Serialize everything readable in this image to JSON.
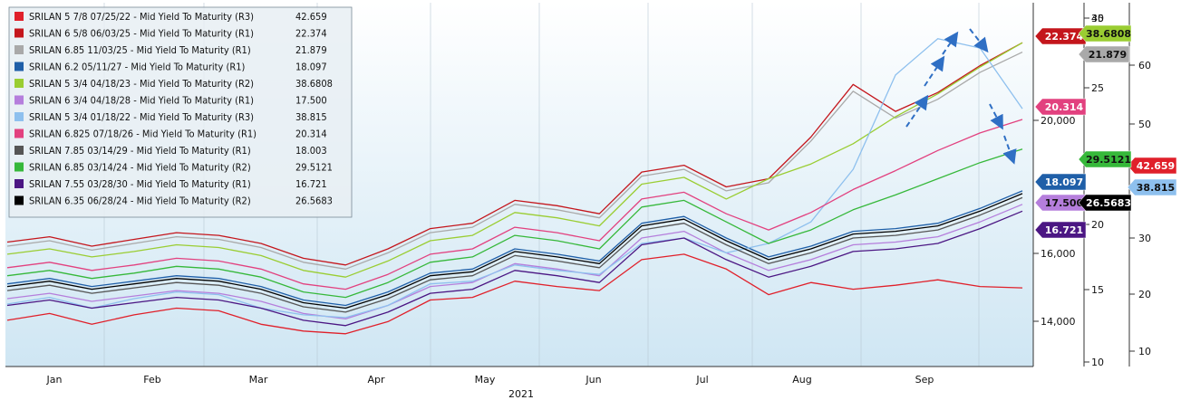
{
  "chart_data": {
    "type": "line",
    "xlabel": "2021",
    "months": [
      "Jan",
      "Feb",
      "Mar",
      "Apr",
      "May",
      "Jun",
      "Jul",
      "Aug",
      "Sep"
    ],
    "axes": {
      "a": {
        "ticks": [
          10,
          15,
          20,
          25,
          35,
          40
        ]
      },
      "b": {
        "ticks": [
          "14,000",
          "16,000",
          "20,000"
        ]
      },
      "c": {
        "ticks": [
          10,
          20,
          30,
          50,
          60
        ]
      }
    },
    "series": [
      {
        "name": "SRILAN 5 7/8 07/25/22 - Mid Yield To Maturity (R3)",
        "value": "42.659",
        "color": "#e0202a",
        "badge_text": "#ffffff",
        "values": [
          16.3,
          16.8,
          16.0,
          16.7,
          17.2,
          17.0,
          16.0,
          15.5,
          15.3,
          16.2,
          17.8,
          18.0,
          19.2,
          18.8,
          18.5,
          20.8,
          21.2,
          20.1,
          18.2,
          19.1,
          18.6,
          18.9,
          19.3,
          18.8,
          18.7
        ]
      },
      {
        "name": "SRILAN 6 5/8 06/03/25 - Mid Yield To Maturity (R1)",
        "value": "22.374",
        "color": "#c4161c",
        "badge_text": "#ffffff",
        "values": [
          22.1,
          22.5,
          21.8,
          22.3,
          22.8,
          22.6,
          22.0,
          20.9,
          20.4,
          21.6,
          23.1,
          23.5,
          25.2,
          24.8,
          24.2,
          27.3,
          27.8,
          26.2,
          26.8,
          29.9,
          33.8,
          31.8,
          33.2,
          35.2,
          36.9
        ]
      },
      {
        "name": "SRILAN 6.85 11/03/25 - Mid Yield To Maturity (R1)",
        "value": "21.879",
        "color": "#a9a9a9",
        "badge_text": "#111111",
        "values": [
          21.8,
          22.2,
          21.5,
          22.0,
          22.5,
          22.3,
          21.7,
          20.6,
          20.1,
          21.3,
          22.8,
          23.2,
          24.9,
          24.5,
          23.9,
          27.0,
          27.5,
          25.9,
          26.5,
          29.6,
          33.3,
          31.3,
          32.7,
          34.7,
          36.2
        ]
      },
      {
        "name": "SRILAN 6.2 05/11/27 - Mid Yield To Maturity (R1)",
        "value": "18.097",
        "color": "#1f5fa8",
        "badge_text": "#ffffff",
        "values": [
          19.0,
          19.4,
          18.8,
          19.2,
          19.6,
          19.4,
          18.8,
          17.8,
          17.4,
          18.4,
          19.8,
          20.1,
          21.6,
          21.2,
          20.7,
          23.5,
          24.0,
          22.4,
          21.0,
          21.8,
          22.9,
          23.1,
          23.5,
          24.6,
          25.9
        ]
      },
      {
        "name": "SRILAN 5 3/4 04/18/23 - Mid Yield To Maturity (R2)",
        "value": "38.6808",
        "color": "#9acd32",
        "badge_text": "#111111",
        "values": [
          21.2,
          21.6,
          21.0,
          21.4,
          21.9,
          21.7,
          21.1,
          20.0,
          19.5,
          20.7,
          22.2,
          22.6,
          24.3,
          23.9,
          23.3,
          26.4,
          26.9,
          25.3,
          26.8,
          27.9,
          29.4,
          31.4,
          33.1,
          35.1,
          36.9
        ]
      },
      {
        "name": "SRILAN 6 3/4 04/18/28 - Mid Yield To Maturity (R1)",
        "value": "17.500",
        "color": "#b57edc",
        "badge_text": "#111111",
        "values": [
          17.9,
          18.3,
          17.7,
          18.1,
          18.5,
          18.3,
          17.7,
          16.8,
          16.4,
          17.4,
          18.8,
          19.1,
          20.5,
          20.1,
          19.6,
          22.4,
          22.9,
          21.3,
          20.0,
          20.8,
          21.9,
          22.1,
          22.5,
          23.6,
          24.9
        ]
      },
      {
        "name": "SRILAN 5 3/4 01/18/22 - Mid Yield To Maturity (R3)",
        "value": "38.815",
        "color": "#8ec0ee",
        "badge_text": "#111111",
        "values": [
          17.5,
          18.0,
          17.2,
          17.9,
          18.4,
          18.2,
          17.2,
          16.7,
          16.5,
          17.4,
          19.0,
          19.2,
          20.4,
          20.0,
          19.7,
          22.0,
          22.4,
          21.3,
          22.0,
          23.6,
          27.5,
          34.5,
          37.2,
          36.5,
          32.0
        ]
      },
      {
        "name": "SRILAN 6.825 07/18/26 - Mid Yield To Maturity (R1)",
        "value": "20.314",
        "color": "#e2417f",
        "badge_text": "#ffffff",
        "values": [
          20.2,
          20.6,
          20.0,
          20.4,
          20.9,
          20.7,
          20.1,
          19.0,
          18.6,
          19.7,
          21.2,
          21.6,
          23.2,
          22.8,
          22.2,
          25.3,
          25.8,
          24.2,
          23.0,
          24.3,
          26.0,
          27.4,
          28.9,
          30.2,
          31.2
        ]
      },
      {
        "name": "SRILAN 7.85 03/14/29 - Mid Yield To Maturity (R1)",
        "value": "18.003",
        "color": "#555555",
        "badge_text": "#ffffff",
        "values": [
          18.5,
          18.9,
          18.3,
          18.7,
          19.1,
          18.9,
          18.3,
          17.3,
          16.9,
          17.9,
          19.3,
          19.6,
          21.1,
          20.7,
          20.2,
          23.0,
          23.5,
          21.9,
          20.5,
          21.3,
          22.4,
          22.6,
          23.0,
          24.1,
          25.4
        ]
      },
      {
        "name": "SRILAN 6.85 03/14/24 - Mid Yield To Maturity (R2)",
        "value": "29.5121",
        "color": "#36b83a",
        "badge_text": "#111111",
        "values": [
          19.6,
          20.0,
          19.4,
          19.8,
          20.3,
          20.1,
          19.5,
          18.4,
          18.0,
          19.1,
          20.6,
          21.0,
          22.6,
          22.2,
          21.6,
          24.7,
          25.2,
          23.6,
          22.0,
          23.0,
          24.5,
          25.6,
          26.8,
          28.0,
          29.0
        ]
      },
      {
        "name": "SRILAN 7.55 03/28/30 - Mid Yield To Maturity (R1)",
        "value": "16.721",
        "color": "#4b1683",
        "badge_text": "#ffffff",
        "values": [
          17.4,
          17.8,
          17.2,
          17.6,
          18.0,
          17.8,
          17.2,
          16.3,
          15.9,
          16.9,
          18.3,
          18.6,
          20.0,
          19.6,
          19.1,
          21.9,
          22.4,
          20.8,
          19.5,
          20.3,
          21.4,
          21.6,
          22.0,
          23.1,
          24.4
        ]
      },
      {
        "name": "SRILAN 6.35 06/28/24 - Mid Yield To Maturity (R2)",
        "value": "26.5683",
        "color": "#000000",
        "badge_text": "#ffffff",
        "values": [
          18.8,
          19.2,
          18.6,
          19.0,
          19.4,
          19.2,
          18.6,
          17.6,
          17.2,
          18.2,
          19.6,
          19.9,
          21.4,
          21.0,
          20.5,
          23.3,
          23.8,
          22.2,
          20.8,
          21.6,
          22.7,
          22.9,
          23.3,
          24.4,
          25.7
        ]
      }
    ]
  }
}
